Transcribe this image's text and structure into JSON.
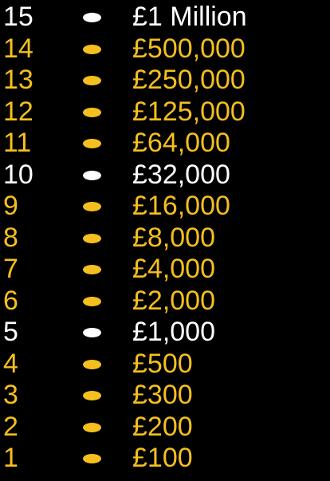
{
  "colors": {
    "background": "#000000",
    "safe_haven": "#ffffff",
    "regular": "#f5bf1f"
  },
  "ladder": {
    "rungs": [
      {
        "level": "15",
        "prize": "£1 Million",
        "safe_haven": true
      },
      {
        "level": "14",
        "prize": "£500,000",
        "safe_haven": false
      },
      {
        "level": "13",
        "prize": "£250,000",
        "safe_haven": false
      },
      {
        "level": "12",
        "prize": "£125,000",
        "safe_haven": false
      },
      {
        "level": "11",
        "prize": "£64,000",
        "safe_haven": false
      },
      {
        "level": "10",
        "prize": "£32,000",
        "safe_haven": true
      },
      {
        "level": "9",
        "prize": "£16,000",
        "safe_haven": false
      },
      {
        "level": "8",
        "prize": "£8,000",
        "safe_haven": false
      },
      {
        "level": "7",
        "prize": "£4,000",
        "safe_haven": false
      },
      {
        "level": "6",
        "prize": "£2,000",
        "safe_haven": false
      },
      {
        "level": "5",
        "prize": "£1,000",
        "safe_haven": true
      },
      {
        "level": "4",
        "prize": "£500",
        "safe_haven": false
      },
      {
        "level": "3",
        "prize": "£300",
        "safe_haven": false
      },
      {
        "level": "2",
        "prize": "£200",
        "safe_haven": false
      },
      {
        "level": "1",
        "prize": "£100",
        "safe_haven": false
      }
    ]
  }
}
